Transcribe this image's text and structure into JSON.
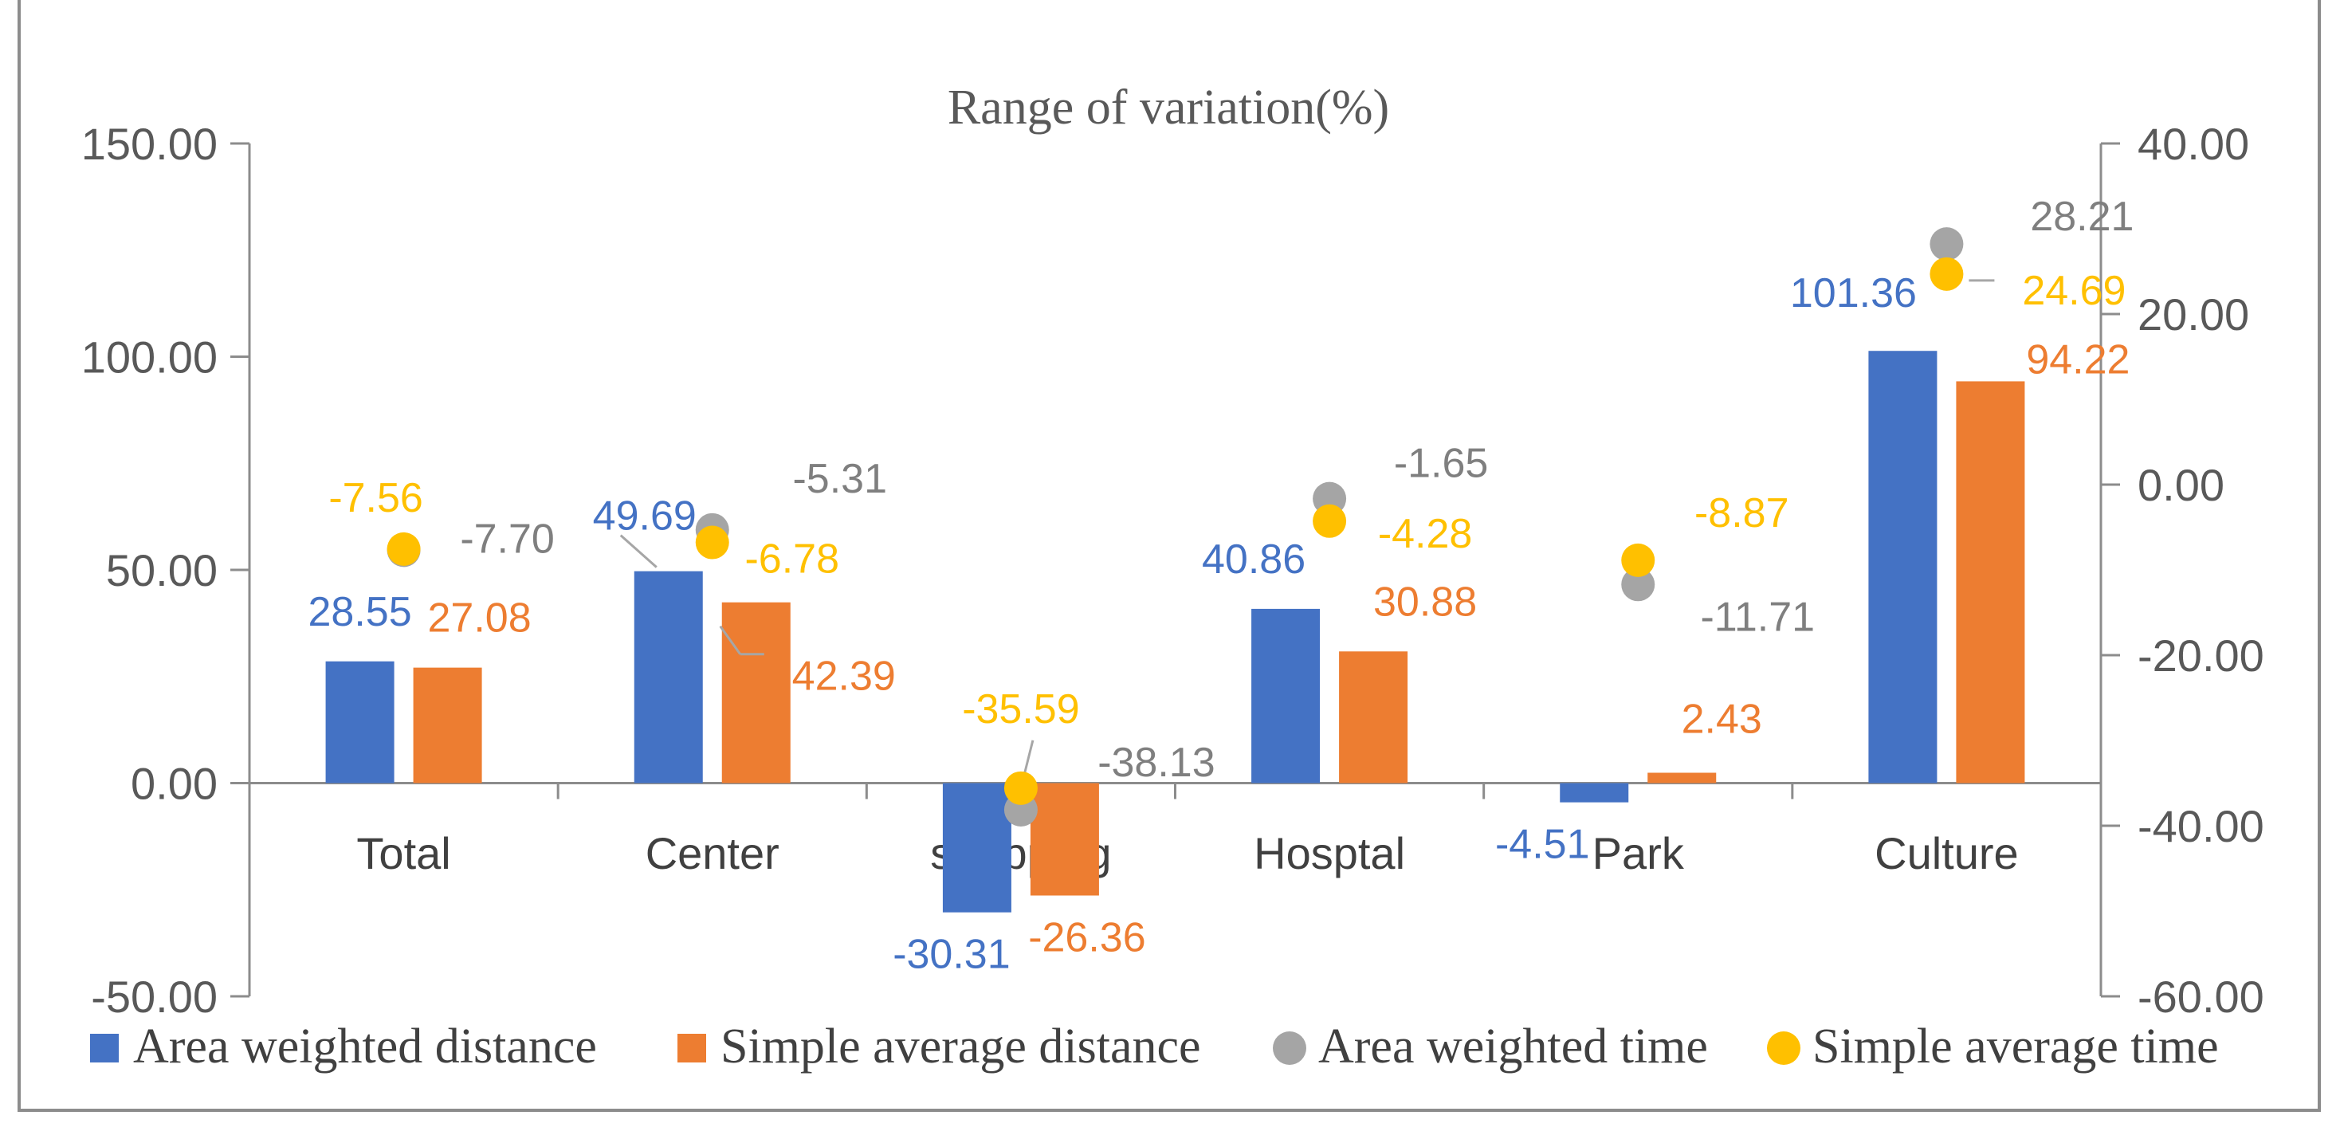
{
  "chart_data": {
    "type": "bar",
    "title": "Range of variation(%)",
    "categories": [
      "Total",
      "Center",
      "shopping",
      "Hosptal",
      "Park",
      "Culture"
    ],
    "left_axis": {
      "ylim": [
        -50,
        150
      ],
      "ticks": [
        "150.00",
        "100.00",
        "50.00",
        "0.00",
        "-50.00"
      ],
      "tick_values": [
        150,
        100,
        50,
        0,
        -50
      ]
    },
    "right_axis": {
      "ylim": [
        -60,
        40
      ],
      "ticks": [
        "40.00",
        "20.00",
        "0.00",
        "-20.00",
        "-40.00",
        "-60.00"
      ],
      "tick_values": [
        40,
        20,
        0,
        -20,
        -40,
        -60
      ]
    },
    "series": [
      {
        "name": "Area weighted distance",
        "kind": "bar",
        "axis": "left",
        "color": "#4472C4",
        "values": [
          28.55,
          49.69,
          -30.31,
          40.86,
          -4.51,
          101.36
        ],
        "labels": [
          "28.55",
          "49.69",
          "-30.31",
          "40.86",
          "-4.51",
          "101.36"
        ]
      },
      {
        "name": "Simple average distance",
        "kind": "bar",
        "axis": "left",
        "color": "#ED7D31",
        "values": [
          27.08,
          42.39,
          -26.36,
          30.88,
          2.43,
          94.22
        ],
        "labels": [
          "27.08",
          "42.39",
          "-26.36",
          "30.88",
          "2.43",
          "94.22"
        ]
      },
      {
        "name": "Area weighted time",
        "kind": "scatter",
        "axis": "right",
        "color": "#A5A5A5",
        "values": [
          -7.7,
          -5.31,
          -38.13,
          -1.65,
          -11.71,
          28.21
        ],
        "labels": [
          "-7.70",
          "-5.31",
          "-38.13",
          "-1.65",
          "-11.71",
          "28.21"
        ]
      },
      {
        "name": "Simple average time",
        "kind": "scatter",
        "axis": "right",
        "color": "#FFC000",
        "values": [
          -7.56,
          -6.78,
          -35.59,
          -4.28,
          -8.87,
          24.69
        ],
        "labels": [
          "-7.56",
          "-6.78",
          "-35.59",
          "-4.28",
          "-8.87",
          "24.69"
        ]
      }
    ],
    "legend_position": "bottom",
    "grid": false
  }
}
